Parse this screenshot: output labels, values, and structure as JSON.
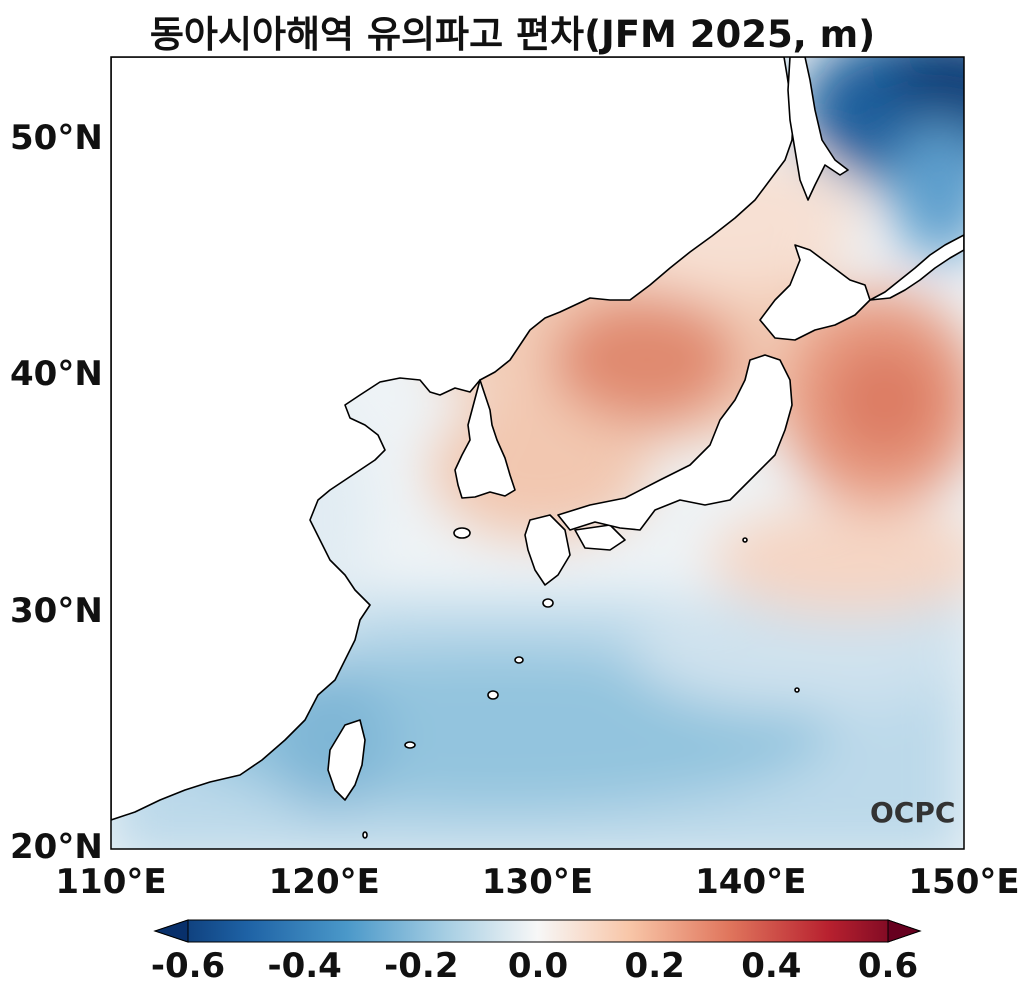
{
  "title": "동아시아해역 유의파고 편차(JFM 2025, m)",
  "logo": "OCPC",
  "axes": {
    "lat_ticks": [
      {
        "value": 50,
        "label": "50°N"
      },
      {
        "value": 40,
        "label": "40°N"
      },
      {
        "value": 30,
        "label": "30°N"
      },
      {
        "value": 20,
        "label": "20°N"
      }
    ],
    "lon_ticks": [
      {
        "value": 110,
        "label": "110°E"
      },
      {
        "value": 120,
        "label": "120°E"
      },
      {
        "value": 130,
        "label": "130°E"
      },
      {
        "value": 140,
        "label": "140°E"
      },
      {
        "value": 150,
        "label": "150°E"
      }
    ],
    "lon_range": [
      110,
      150
    ],
    "lat_range": [
      20,
      53.5
    ]
  },
  "colorbar": {
    "range": [
      -0.6,
      0.6
    ],
    "colormap": "RdBu_r",
    "extend": "both",
    "ticks": [
      {
        "value": -0.6,
        "label": "-0.6"
      },
      {
        "value": -0.4,
        "label": "-0.4"
      },
      {
        "value": -0.2,
        "label": "-0.2"
      },
      {
        "value": 0.0,
        "label": "0.0"
      },
      {
        "value": 0.2,
        "label": "0.2"
      },
      {
        "value": 0.4,
        "label": "0.4"
      },
      {
        "value": 0.6,
        "label": "0.6"
      }
    ]
  },
  "colors": {
    "land": "#ffffff",
    "coastline": "#000000",
    "strong_negative": "#08306b",
    "negative": "#92c5de",
    "neutral": "#f7f7f7",
    "positive": "#f4a582",
    "strong_positive": "#67001f"
  }
}
